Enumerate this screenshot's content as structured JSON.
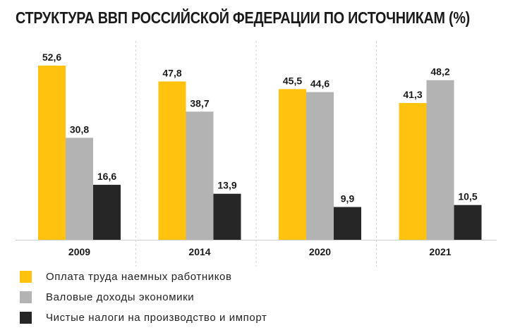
{
  "chart_data": {
    "type": "bar",
    "title": "СТРУКТУРА ВВП РОССИЙСКОЙ ФЕДЕРАЦИИ ПО ИСТОЧНИКАМ (%)",
    "categories": [
      "2009",
      "2014",
      "2020",
      "2021"
    ],
    "series": [
      {
        "name": "Оплата труда наемных работников",
        "color": "#FFC20E",
        "values": [
          52.6,
          47.8,
          45.5,
          41.3
        ],
        "labels": [
          "52,6",
          "47,8",
          "45,5",
          "41,3"
        ]
      },
      {
        "name": "Валовые доходы экономики",
        "color": "#B3B3B3",
        "values": [
          30.8,
          38.7,
          44.6,
          48.2
        ],
        "labels": [
          "30,8",
          "38,7",
          "44,6",
          "48,2"
        ]
      },
      {
        "name": "Чистые налоги на производство и импорт",
        "color": "#262626",
        "values": [
          16.6,
          13.9,
          9.9,
          10.5
        ],
        "labels": [
          "16,6",
          "13,9",
          "9,9",
          "10,5"
        ]
      }
    ],
    "xlabel": "",
    "ylabel": "",
    "ylim": [
      0,
      55
    ],
    "grid": false,
    "legend": "bottom-left"
  }
}
